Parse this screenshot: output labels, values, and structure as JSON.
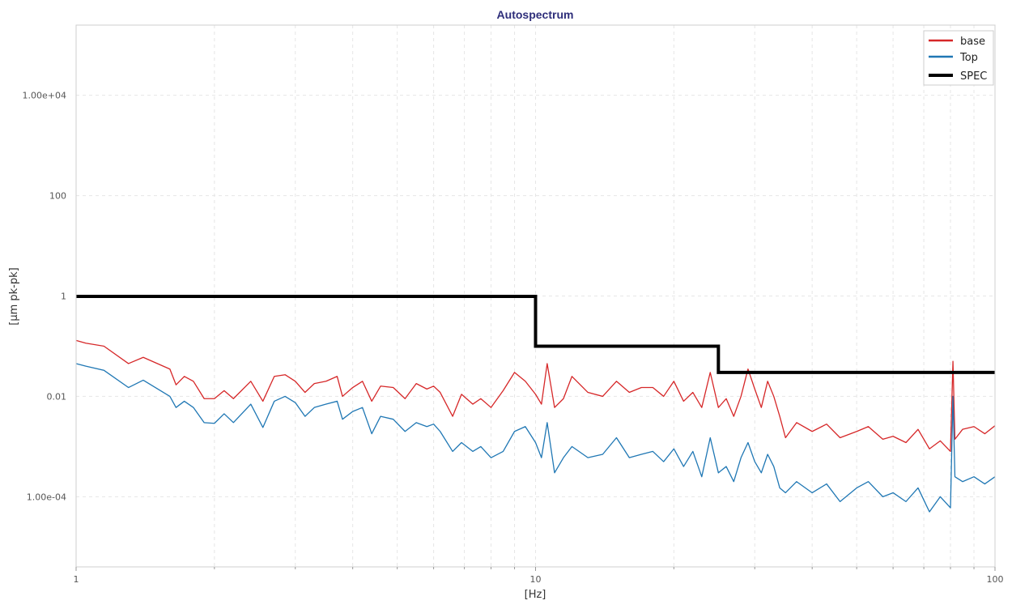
{
  "chart_data": {
    "type": "line",
    "title": "Autospectrum",
    "xlabel": "[Hz]",
    "ylabel": "[µm pk-pk]",
    "xscale": "log",
    "yscale": "log",
    "xlim": [
      1,
      100
    ],
    "ylim": [
      4e-06,
      250000
    ],
    "x_ticks": [
      {
        "value": 1,
        "label": "1"
      },
      {
        "value": 10,
        "label": "10"
      },
      {
        "value": 100,
        "label": "100"
      }
    ],
    "y_ticks": [
      {
        "value": 0.0001,
        "label": "1.00e-04"
      },
      {
        "value": 0.01,
        "label": "0.01"
      },
      {
        "value": 1,
        "label": "1"
      },
      {
        "value": 100,
        "label": "100"
      },
      {
        "value": 10000,
        "label": "1.00e+04"
      }
    ],
    "grid": true,
    "legend_position": "top-right",
    "series": [
      {
        "name": "base",
        "color": "#d62728",
        "points": [
          [
            1.0,
            0.13
          ],
          [
            1.05,
            0.115
          ],
          [
            1.15,
            0.1
          ],
          [
            1.3,
            0.045
          ],
          [
            1.4,
            0.06
          ],
          [
            1.6,
            0.035
          ],
          [
            1.65,
            0.017
          ],
          [
            1.72,
            0.025
          ],
          [
            1.8,
            0.02
          ],
          [
            1.9,
            0.009
          ],
          [
            2.0,
            0.009
          ],
          [
            2.1,
            0.013
          ],
          [
            2.2,
            0.009
          ],
          [
            2.4,
            0.02
          ],
          [
            2.55,
            0.008
          ],
          [
            2.7,
            0.025
          ],
          [
            2.85,
            0.027
          ],
          [
            3.0,
            0.02
          ],
          [
            3.15,
            0.012
          ],
          [
            3.3,
            0.018
          ],
          [
            3.5,
            0.02
          ],
          [
            3.7,
            0.025
          ],
          [
            3.8,
            0.01
          ],
          [
            4.0,
            0.015
          ],
          [
            4.2,
            0.02
          ],
          [
            4.4,
            0.008
          ],
          [
            4.6,
            0.016
          ],
          [
            4.9,
            0.015
          ],
          [
            5.2,
            0.009
          ],
          [
            5.5,
            0.018
          ],
          [
            5.8,
            0.014
          ],
          [
            6.0,
            0.016
          ],
          [
            6.2,
            0.012
          ],
          [
            6.6,
            0.004
          ],
          [
            6.9,
            0.011
          ],
          [
            7.3,
            0.007
          ],
          [
            7.6,
            0.009
          ],
          [
            8.0,
            0.006
          ],
          [
            8.5,
            0.013
          ],
          [
            9.0,
            0.03
          ],
          [
            9.5,
            0.02
          ],
          [
            10.0,
            0.011
          ],
          [
            10.3,
            0.007
          ],
          [
            10.6,
            0.045
          ],
          [
            11.0,
            0.006
          ],
          [
            11.5,
            0.009
          ],
          [
            12.0,
            0.025
          ],
          [
            13.0,
            0.012
          ],
          [
            14.0,
            0.01
          ],
          [
            15.0,
            0.02
          ],
          [
            16.0,
            0.012
          ],
          [
            17.0,
            0.015
          ],
          [
            18.0,
            0.015
          ],
          [
            19.0,
            0.01
          ],
          [
            20.0,
            0.02
          ],
          [
            21.0,
            0.008
          ],
          [
            22.0,
            0.012
          ],
          [
            23.0,
            0.006
          ],
          [
            24.0,
            0.03
          ],
          [
            25.0,
            0.006
          ],
          [
            26.0,
            0.009
          ],
          [
            27.0,
            0.004
          ],
          [
            28.0,
            0.01
          ],
          [
            29.0,
            0.035
          ],
          [
            30.0,
            0.014
          ],
          [
            31.0,
            0.006
          ],
          [
            32.0,
            0.02
          ],
          [
            33.0,
            0.01
          ],
          [
            34.0,
            0.004
          ],
          [
            35.0,
            0.0015
          ],
          [
            37.0,
            0.003
          ],
          [
            40.0,
            0.002
          ],
          [
            43.0,
            0.0028
          ],
          [
            46.0,
            0.0015
          ],
          [
            50.0,
            0.002
          ],
          [
            53.0,
            0.0025
          ],
          [
            57.0,
            0.0014
          ],
          [
            60.0,
            0.0016
          ],
          [
            64.0,
            0.0012
          ],
          [
            68.0,
            0.0022
          ],
          [
            72.0,
            0.0009
          ],
          [
            76.0,
            0.0013
          ],
          [
            80.0,
            0.0008
          ],
          [
            81.0,
            0.05
          ],
          [
            81.8,
            0.0014
          ],
          [
            85.0,
            0.0022
          ],
          [
            90.0,
            0.0025
          ],
          [
            95.0,
            0.0018
          ],
          [
            100.0,
            0.0026
          ]
        ]
      },
      {
        "name": "Top",
        "color": "#1f77b4",
        "points": [
          [
            1.0,
            0.045
          ],
          [
            1.05,
            0.04
          ],
          [
            1.15,
            0.033
          ],
          [
            1.3,
            0.015
          ],
          [
            1.4,
            0.021
          ],
          [
            1.6,
            0.01
          ],
          [
            1.65,
            0.006
          ],
          [
            1.72,
            0.008
          ],
          [
            1.8,
            0.006
          ],
          [
            1.9,
            0.003
          ],
          [
            2.0,
            0.0029
          ],
          [
            2.1,
            0.0045
          ],
          [
            2.2,
            0.003
          ],
          [
            2.4,
            0.007
          ],
          [
            2.55,
            0.0024
          ],
          [
            2.7,
            0.008
          ],
          [
            2.85,
            0.01
          ],
          [
            3.0,
            0.0075
          ],
          [
            3.15,
            0.004
          ],
          [
            3.3,
            0.006
          ],
          [
            3.5,
            0.007
          ],
          [
            3.7,
            0.008
          ],
          [
            3.8,
            0.0035
          ],
          [
            4.0,
            0.005
          ],
          [
            4.2,
            0.006
          ],
          [
            4.4,
            0.0018
          ],
          [
            4.6,
            0.004
          ],
          [
            4.9,
            0.0035
          ],
          [
            5.2,
            0.002
          ],
          [
            5.5,
            0.003
          ],
          [
            5.8,
            0.0025
          ],
          [
            6.0,
            0.0028
          ],
          [
            6.2,
            0.002
          ],
          [
            6.6,
            0.0008
          ],
          [
            6.9,
            0.0012
          ],
          [
            7.3,
            0.0008
          ],
          [
            7.6,
            0.001
          ],
          [
            8.0,
            0.0006
          ],
          [
            8.5,
            0.0008
          ],
          [
            9.0,
            0.002
          ],
          [
            9.5,
            0.0025
          ],
          [
            10.0,
            0.0012
          ],
          [
            10.3,
            0.0006
          ],
          [
            10.6,
            0.003
          ],
          [
            11.0,
            0.0003
          ],
          [
            11.5,
            0.0006
          ],
          [
            12.0,
            0.001
          ],
          [
            13.0,
            0.0006
          ],
          [
            14.0,
            0.0007
          ],
          [
            15.0,
            0.0015
          ],
          [
            16.0,
            0.0006
          ],
          [
            17.0,
            0.0007
          ],
          [
            18.0,
            0.0008
          ],
          [
            19.0,
            0.0005
          ],
          [
            20.0,
            0.0009
          ],
          [
            21.0,
            0.0004
          ],
          [
            22.0,
            0.0008
          ],
          [
            23.0,
            0.00025
          ],
          [
            24.0,
            0.0015
          ],
          [
            25.0,
            0.0003
          ],
          [
            26.0,
            0.0004
          ],
          [
            27.0,
            0.0002
          ],
          [
            28.0,
            0.0006
          ],
          [
            29.0,
            0.0012
          ],
          [
            30.0,
            0.0005
          ],
          [
            31.0,
            0.0003
          ],
          [
            32.0,
            0.0007
          ],
          [
            33.0,
            0.0004
          ],
          [
            34.0,
            0.00015
          ],
          [
            35.0,
            0.00012
          ],
          [
            37.0,
            0.0002
          ],
          [
            40.0,
            0.00012
          ],
          [
            43.0,
            0.00018
          ],
          [
            46.0,
            8e-05
          ],
          [
            50.0,
            0.00015
          ],
          [
            53.0,
            0.0002
          ],
          [
            57.0,
            0.0001
          ],
          [
            60.0,
            0.00012
          ],
          [
            64.0,
            8e-05
          ],
          [
            68.0,
            0.00015
          ],
          [
            72.0,
            5e-05
          ],
          [
            76.0,
            0.0001
          ],
          [
            80.0,
            6e-05
          ],
          [
            81.0,
            0.01
          ],
          [
            81.8,
            0.00025
          ],
          [
            85.0,
            0.0002
          ],
          [
            90.0,
            0.00025
          ],
          [
            95.0,
            0.00018
          ],
          [
            100.0,
            0.00025
          ]
        ]
      },
      {
        "name": "SPEC",
        "color": "#000000",
        "step": true,
        "points": [
          [
            1,
            0.98
          ],
          [
            10,
            0.98
          ],
          [
            10,
            0.1
          ],
          [
            25,
            0.1
          ],
          [
            25,
            0.03
          ],
          [
            100,
            0.03
          ]
        ]
      }
    ]
  }
}
